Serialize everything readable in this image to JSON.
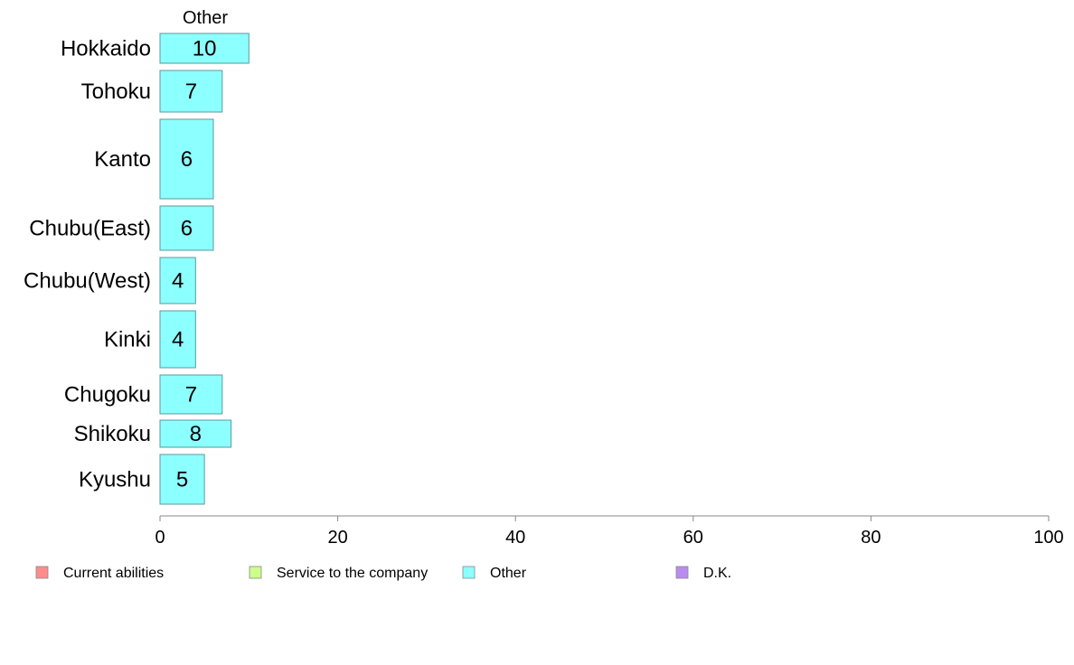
{
  "chart_data": {
    "type": "bar",
    "orientation": "horizontal",
    "series_header": "Other",
    "categories": [
      "Hokkaido",
      "Tohoku",
      "Kanto",
      "Chubu(East)",
      "Chubu(West)",
      "Kinki",
      "Chugoku",
      "Shikoku",
      "Kyushu"
    ],
    "series": [
      {
        "name": "Other",
        "values": [
          10,
          7,
          6,
          6,
          4,
          4,
          7,
          8,
          5
        ],
        "color": "#8cffff"
      }
    ],
    "data_labels": [
      "10",
      "7",
      "6",
      "6",
      "4",
      "4",
      "7",
      "8",
      "5"
    ],
    "xlim": [
      0,
      100
    ],
    "x_ticks": [
      0,
      20,
      40,
      60,
      80,
      100
    ],
    "x_tick_labels": [
      "0",
      "20",
      "40",
      "60",
      "80",
      "100"
    ],
    "grid": false,
    "legend_position": "bottom",
    "legend": [
      {
        "label": "Current abilities",
        "color": "#ff8c8c"
      },
      {
        "label": "Service to the company",
        "color": "#ccff8c"
      },
      {
        "label": "Other",
        "color": "#8cffff"
      },
      {
        "label": "D.K.",
        "color": "#b98cf0"
      }
    ],
    "colors": {
      "bar_stroke": "#5a9aa0",
      "axis": "#888888"
    }
  }
}
